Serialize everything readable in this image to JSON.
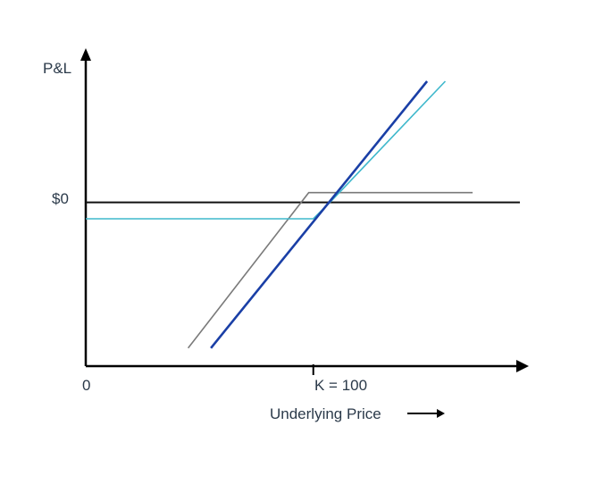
{
  "chart_data": {
    "type": "line",
    "title": "",
    "ylabel": "P&L",
    "xlabel": "Underlying Price",
    "x_origin_label": "0",
    "strike_label": "K = 100",
    "zero_label": "$0",
    "strike": 100,
    "xlim": [
      0,
      190
    ],
    "ylim": [
      -100,
      80
    ],
    "grid": false,
    "colors": {
      "axis": "#000000",
      "zero_line": "#111111",
      "series_0": "#1a3fa6",
      "series_1": "#3fb8cc",
      "series_2": "#7a7a7a"
    },
    "series": [
      {
        "x": [
          55,
          150
        ],
        "y": [
          -89,
          74
        ]
      },
      {
        "x": [
          0,
          100,
          108,
          158
        ],
        "y": [
          -10,
          -10,
          1,
          74
        ]
      },
      {
        "x": [
          45,
          98,
          100,
          170
        ],
        "y": [
          -89,
          6,
          6,
          6
        ]
      }
    ]
  }
}
